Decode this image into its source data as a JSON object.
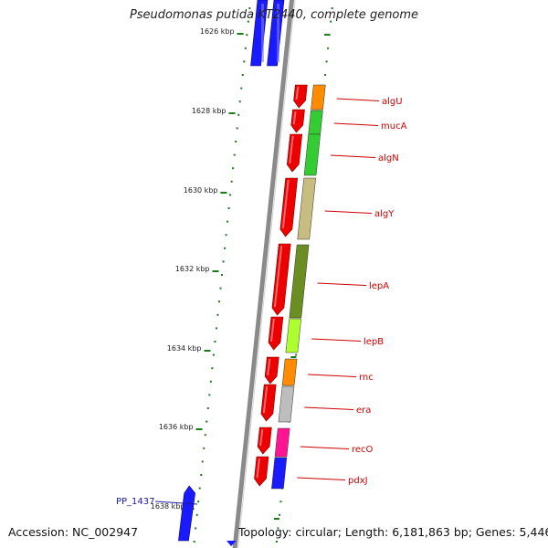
{
  "title": "Pseudomonas putida KT2440, complete genome",
  "footer": {
    "accession": "Accession: NC_002947",
    "summary": "Topology: circular; Length: 6,181,863 bp; Genes: 5,446"
  },
  "colors": {
    "forward_gene": "#1a1aff",
    "reverse_gene": "#ee0000",
    "backbone": "#8a8a8a",
    "tick": "#1d7a1d",
    "label_line": "#cc0000"
  },
  "kbp_ticks": [
    "1626 kbp",
    "1628 kbp",
    "1630 kbp",
    "1632 kbp",
    "1634 kbp",
    "1636 kbp",
    "1638 kbp"
  ],
  "genes": [
    {
      "name": "algU",
      "color": "#ff8c00"
    },
    {
      "name": "mucA",
      "color": "#33cc33"
    },
    {
      "name": "algN",
      "color": "#33cc33"
    },
    {
      "name": "algY",
      "color": "#c8bd80"
    },
    {
      "name": "lepA",
      "color": "#6b8e23"
    },
    {
      "name": "lepB",
      "color": "#adff2f"
    },
    {
      "name": "rnc",
      "color": "#ff8c00"
    },
    {
      "name": "era",
      "color": "#bdbdbd"
    },
    {
      "name": "recO",
      "color": "#ff1493"
    },
    {
      "name": "pdxJ",
      "color": "#1a1aff"
    }
  ],
  "forward_label": "PP_1437"
}
